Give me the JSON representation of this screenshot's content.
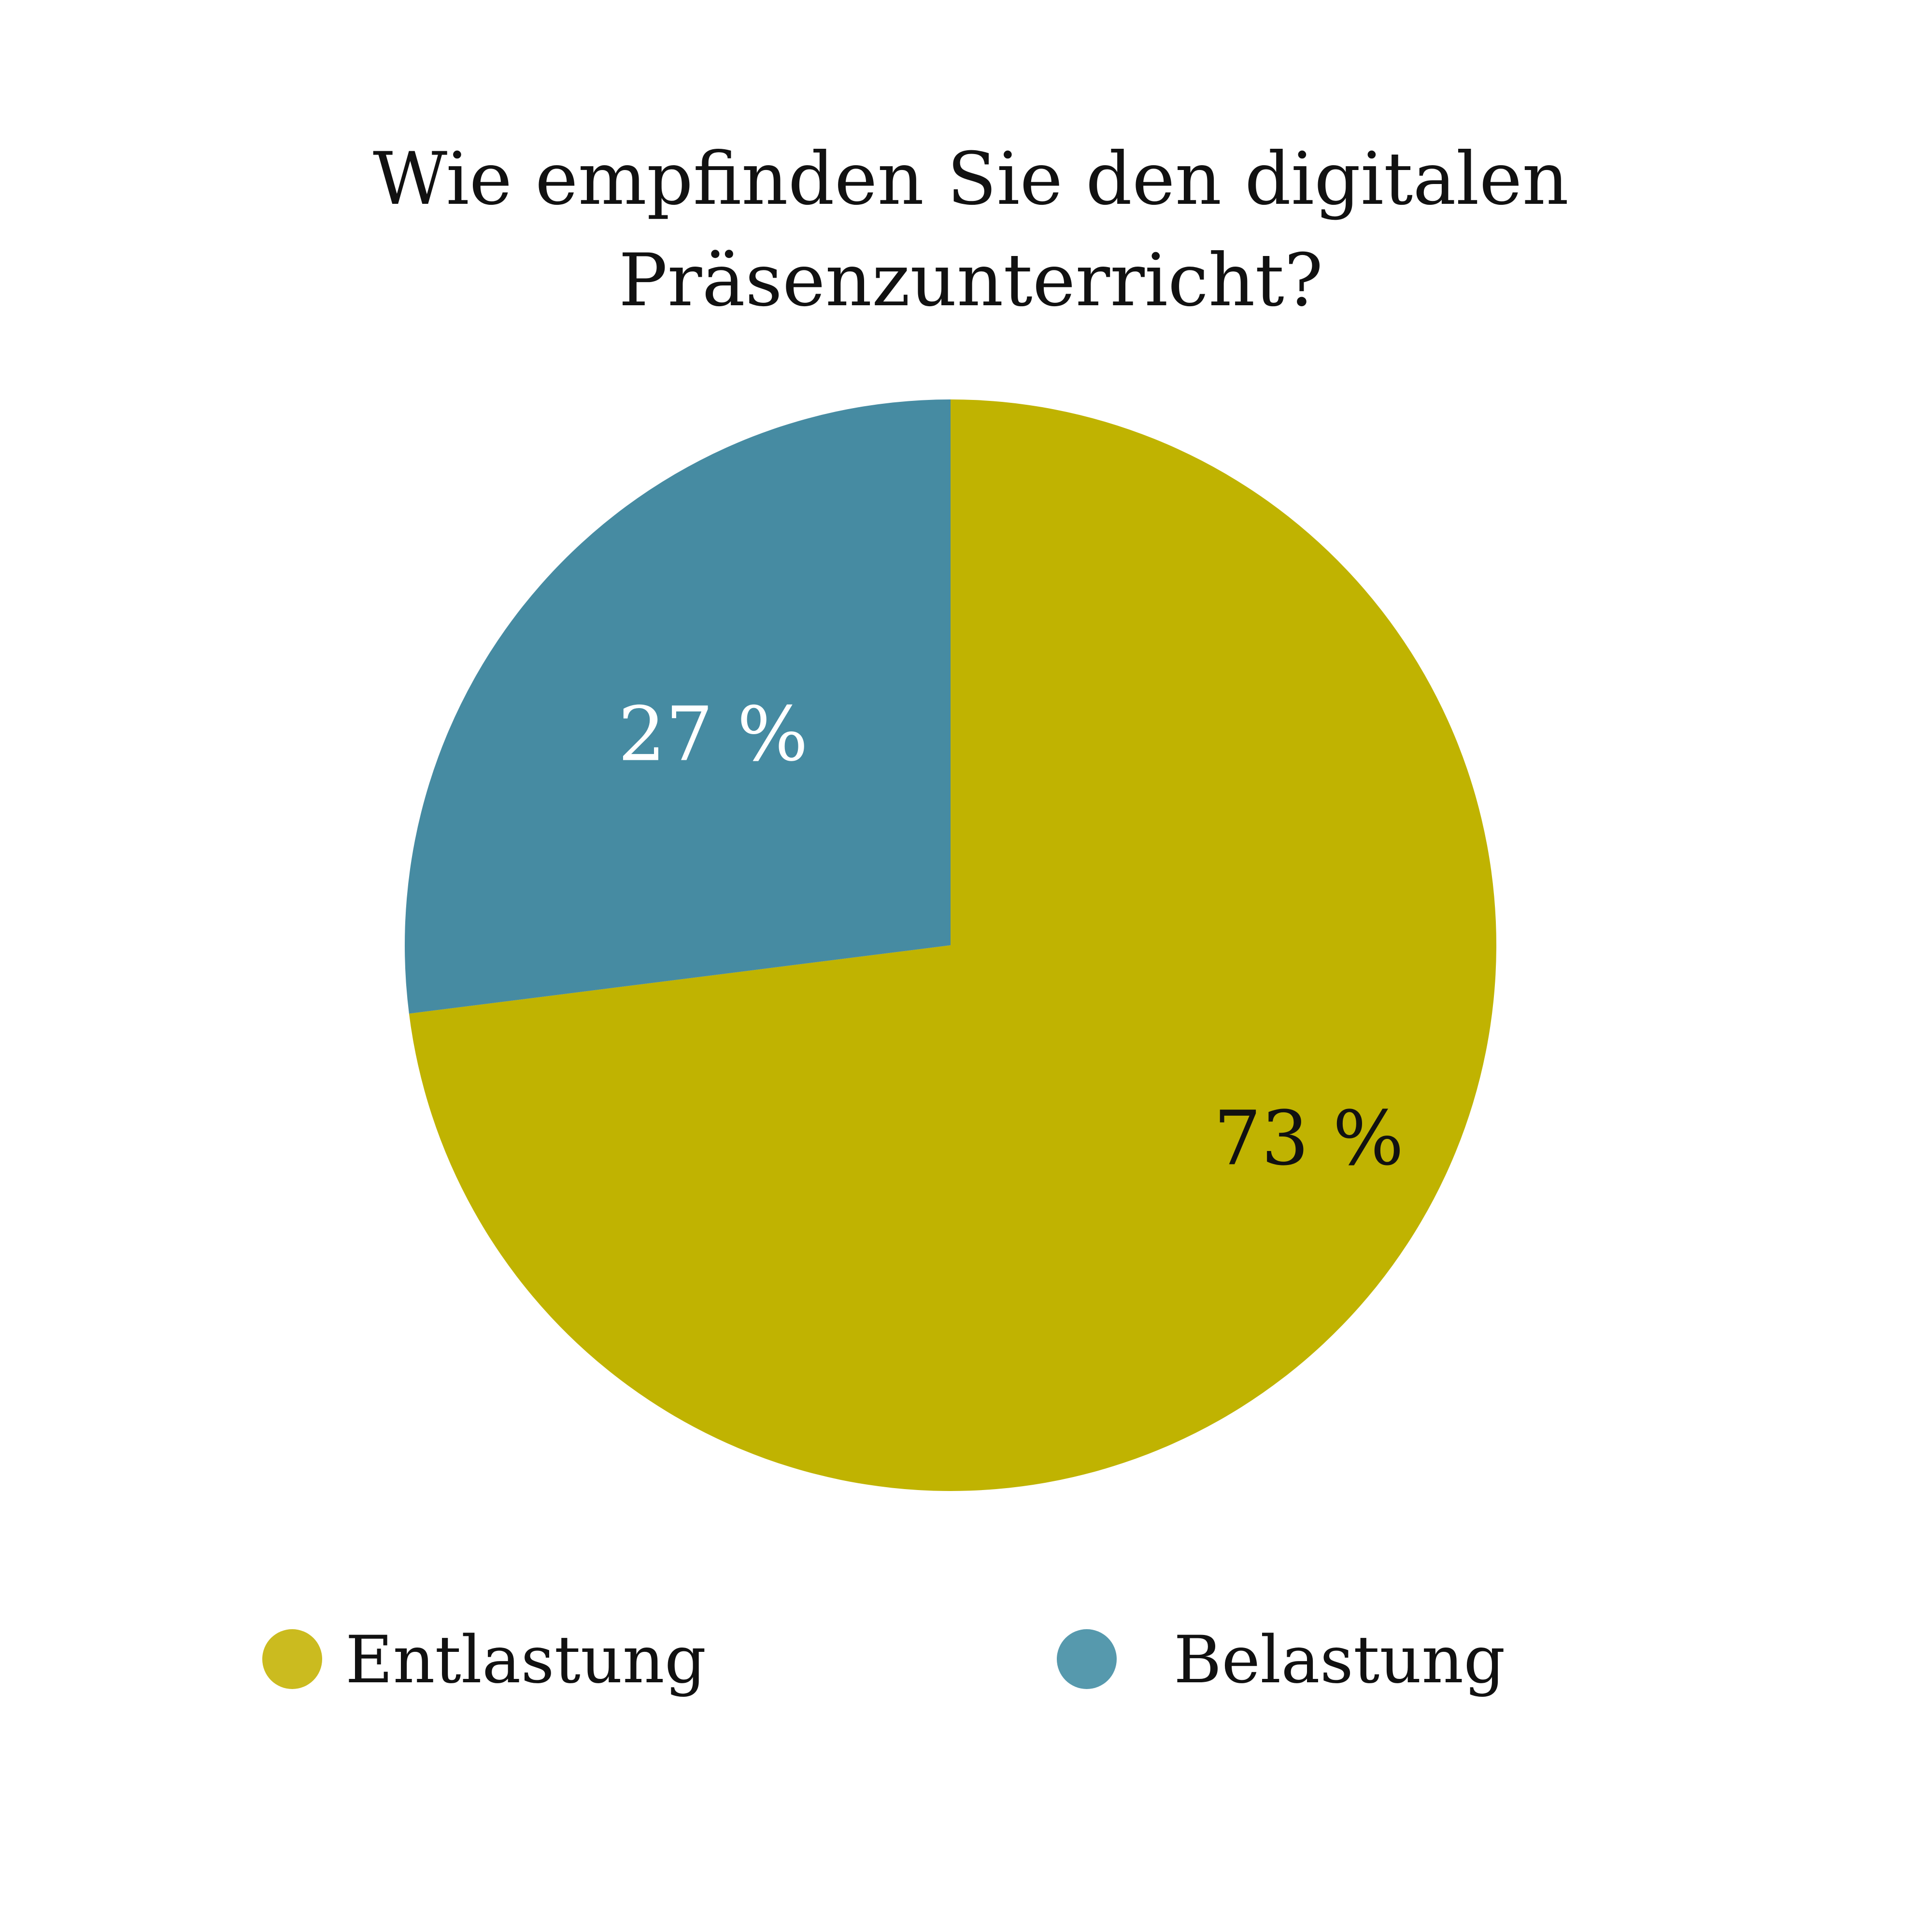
{
  "chart_data": {
    "type": "pie",
    "title": [
      "Wie empfinden Sie den digitalen",
      "Präsenzunterricht?"
    ],
    "slices": [
      {
        "name": "Entlastung",
        "value": 73,
        "label": "73 %",
        "color": "#c0b301",
        "label_color": "#111111"
      },
      {
        "name": "Belastung",
        "value": 27,
        "label": "27 %",
        "color": "#468ba2",
        "label_color": "#ffffff"
      }
    ],
    "legend": {
      "placement": "bottom",
      "items": [
        {
          "label": "Entlastung",
          "color": "#cbbb1f"
        },
        {
          "label": "Belastung",
          "color": "#5699ad"
        }
      ]
    }
  }
}
